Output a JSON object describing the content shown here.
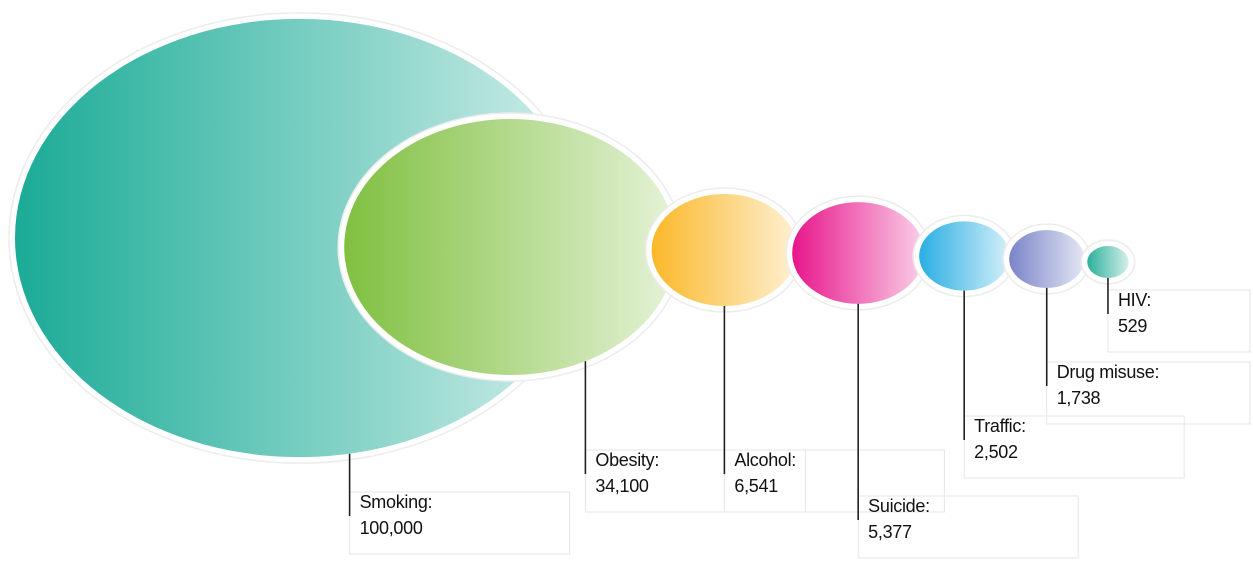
{
  "chart_data": {
    "type": "bubble",
    "categories": [
      "Smoking:",
      "Obesity:",
      "Alcohol:",
      "Suicide:",
      "Traffic:",
      "Drug misuse:",
      "HIV:"
    ],
    "values": [
      100000,
      34100,
      6541,
      5377,
      2502,
      1738,
      529
    ],
    "value_labels": [
      "100,000",
      "34,100",
      "6,541",
      "5,377",
      "2,502",
      "1,738",
      "529"
    ],
    "colors": [
      "#1aab96",
      "#80c040",
      "#fbb829",
      "#e7168b",
      "#29aee3",
      "#7a84c8",
      "#2bb09a"
    ]
  }
}
